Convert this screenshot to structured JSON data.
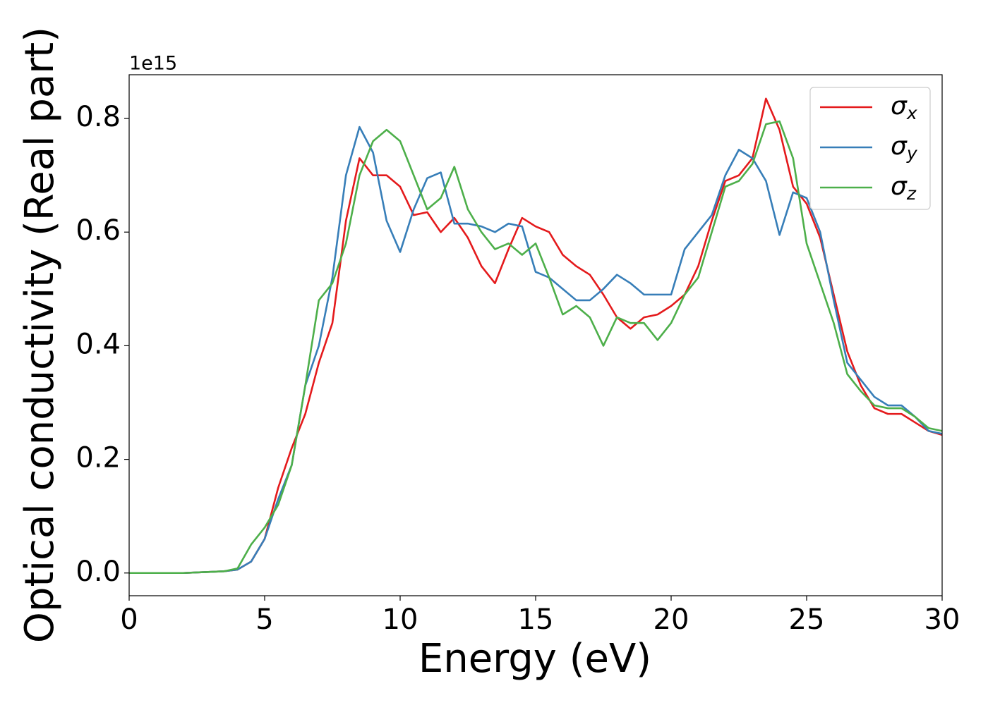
{
  "chart_data": {
    "type": "line",
    "x_label": "Energy (eV)",
    "y_label": "Optical conductivity (Real part)",
    "y_offset_label": "1e15",
    "x": [
      0,
      0.5,
      1,
      1.5,
      2,
      2.5,
      3,
      3.5,
      4,
      4.5,
      5,
      5.5,
      6,
      6.5,
      7,
      7.5,
      8,
      8.5,
      9,
      9.5,
      10,
      10.5,
      11,
      11.5,
      12,
      12.5,
      13,
      13.5,
      14,
      14.5,
      15,
      15.5,
      16,
      16.5,
      17,
      17.5,
      18,
      18.5,
      19,
      19.5,
      20,
      20.5,
      21,
      21.5,
      22,
      22.5,
      23,
      23.5,
      24,
      24.5,
      25,
      25.5,
      26,
      26.5,
      27,
      27.5,
      28,
      28.5,
      29,
      29.5,
      30
    ],
    "series": [
      {
        "name": "σx",
        "color": "#e41a1c",
        "values": [
          0,
          0,
          0,
          0,
          0,
          0.001,
          0.002,
          0.003,
          0.006,
          0.02,
          0.06,
          0.15,
          0.22,
          0.28,
          0.37,
          0.44,
          0.62,
          0.73,
          0.7,
          0.7,
          0.68,
          0.63,
          0.635,
          0.6,
          0.625,
          0.59,
          0.54,
          0.51,
          0.57,
          0.625,
          0.61,
          0.6,
          0.56,
          0.54,
          0.525,
          0.49,
          0.45,
          0.43,
          0.45,
          0.455,
          0.47,
          0.49,
          0.54,
          0.62,
          0.69,
          0.7,
          0.73,
          0.835,
          0.78,
          0.68,
          0.65,
          0.59,
          0.49,
          0.39,
          0.33,
          0.29,
          0.28,
          0.28,
          0.265,
          0.25,
          0.243
        ]
      },
      {
        "name": "σy",
        "color": "#377eb8",
        "values": [
          0,
          0,
          0,
          0,
          0,
          0.001,
          0.002,
          0.003,
          0.006,
          0.02,
          0.06,
          0.13,
          0.19,
          0.33,
          0.4,
          0.52,
          0.7,
          0.785,
          0.74,
          0.62,
          0.565,
          0.64,
          0.695,
          0.705,
          0.615,
          0.615,
          0.61,
          0.6,
          0.615,
          0.61,
          0.53,
          0.52,
          0.5,
          0.48,
          0.48,
          0.5,
          0.525,
          0.51,
          0.49,
          0.49,
          0.49,
          0.57,
          0.6,
          0.63,
          0.7,
          0.745,
          0.73,
          0.69,
          0.595,
          0.67,
          0.66,
          0.6,
          0.48,
          0.37,
          0.34,
          0.31,
          0.295,
          0.295,
          0.275,
          0.25,
          0.245
        ]
      },
      {
        "name": "σz",
        "color": "#4daf4a",
        "values": [
          0,
          0,
          0,
          0,
          0,
          0.001,
          0.002,
          0.003,
          0.008,
          0.05,
          0.08,
          0.12,
          0.19,
          0.33,
          0.48,
          0.51,
          0.58,
          0.7,
          0.76,
          0.78,
          0.76,
          0.7,
          0.64,
          0.66,
          0.715,
          0.64,
          0.6,
          0.57,
          0.58,
          0.56,
          0.58,
          0.52,
          0.455,
          0.47,
          0.45,
          0.4,
          0.45,
          0.44,
          0.44,
          0.41,
          0.44,
          0.49,
          0.52,
          0.6,
          0.68,
          0.69,
          0.72,
          0.79,
          0.795,
          0.73,
          0.58,
          0.51,
          0.44,
          0.35,
          0.32,
          0.295,
          0.29,
          0.29,
          0.275,
          0.255,
          0.25
        ]
      }
    ],
    "xlim": [
      0,
      30
    ],
    "xticks": [
      0,
      5,
      10,
      15,
      20,
      25,
      30
    ],
    "ylim": [
      -0.04,
      0.877
    ],
    "yticks": [
      {
        "value": 0,
        "label": "0.0"
      },
      {
        "value": 0.2,
        "label": "0.2"
      },
      {
        "value": 0.4,
        "label": "0.4"
      },
      {
        "value": 0.6,
        "label": "0.6"
      },
      {
        "value": 0.8,
        "label": "0.8"
      }
    ],
    "grid": false,
    "legend": "upper right"
  }
}
